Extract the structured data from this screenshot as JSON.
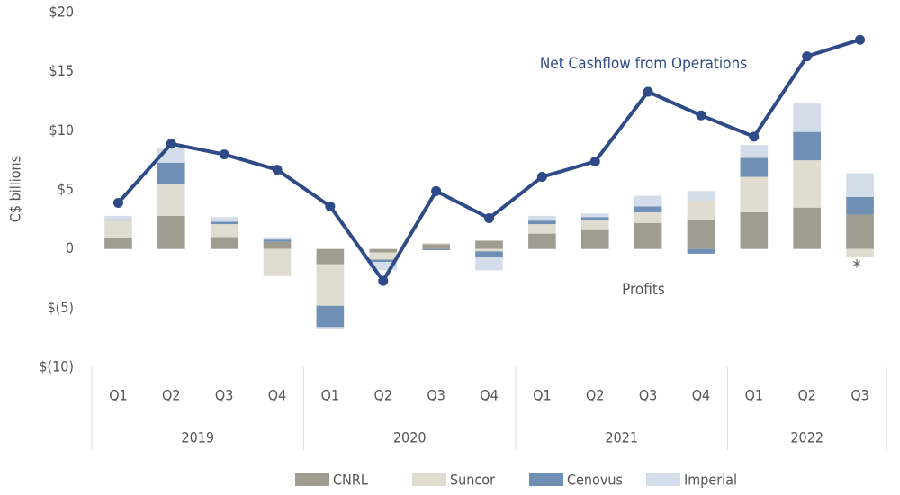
{
  "chart_data": {
    "type": "bar",
    "y_label": "C$ billions",
    "categories": [
      "Q1",
      "Q2",
      "Q3",
      "Q4",
      "Q1",
      "Q2",
      "Q3",
      "Q4",
      "Q1",
      "Q2",
      "Q3",
      "Q4",
      "Q1",
      "Q2",
      "Q3"
    ],
    "groups": [
      {
        "label": "2019",
        "count": 4
      },
      {
        "label": "2020",
        "count": 4
      },
      {
        "label": "2021",
        "count": 4
      },
      {
        "label": "2022",
        "count": 3
      }
    ],
    "series": [
      {
        "name": "CNRL",
        "color": "#a09c8f",
        "values": [
          0.9,
          2.8,
          1.0,
          0.6,
          -1.3,
          -0.3,
          0.4,
          0.7,
          1.3,
          1.6,
          2.2,
          2.5,
          3.1,
          3.5,
          2.9
        ]
      },
      {
        "name": "Suncor",
        "color": "#e0ddd0",
        "values": [
          1.5,
          2.7,
          1.1,
          -2.3,
          -3.5,
          -0.6,
          0.1,
          -0.2,
          0.8,
          0.8,
          0.9,
          1.6,
          3.0,
          4.0,
          -0.7
        ]
      },
      {
        "name": "Cenovus",
        "color": "#6f8fb5",
        "values": [
          0.1,
          1.8,
          0.2,
          0.2,
          -1.8,
          -0.2,
          -0.1,
          -0.5,
          0.3,
          0.3,
          0.5,
          -0.4,
          1.6,
          2.4,
          1.5
        ]
      },
      {
        "name": "Imperial",
        "color": "#d3dde9",
        "values": [
          0.3,
          1.2,
          0.4,
          0.2,
          -0.2,
          -0.7,
          0.0,
          -1.1,
          0.4,
          0.3,
          0.9,
          0.8,
          1.1,
          2.4,
          2.0
        ]
      }
    ],
    "line": {
      "name": "Net Cashflow from Operations",
      "color": "#2e4a87",
      "values": [
        3.9,
        8.9,
        8.0,
        6.7,
        3.6,
        -2.7,
        4.9,
        2.6,
        6.1,
        7.4,
        13.3,
        11.3,
        9.5,
        16.3,
        17.7
      ]
    },
    "annotations": [
      "Profits",
      "*"
    ],
    "ylim": [
      -10,
      20
    ],
    "yticks": [
      {
        "value": -10,
        "label": "$(10)"
      },
      {
        "value": -5,
        "label": "$(5)"
      },
      0,
      {
        "value": 5,
        "label": "$5"
      },
      {
        "value": 10,
        "label": "$10"
      },
      {
        "value": 15,
        "label": "$15"
      },
      {
        "value": 20,
        "label": "$20"
      }
    ],
    "grid": false,
    "legend": "bottom"
  }
}
